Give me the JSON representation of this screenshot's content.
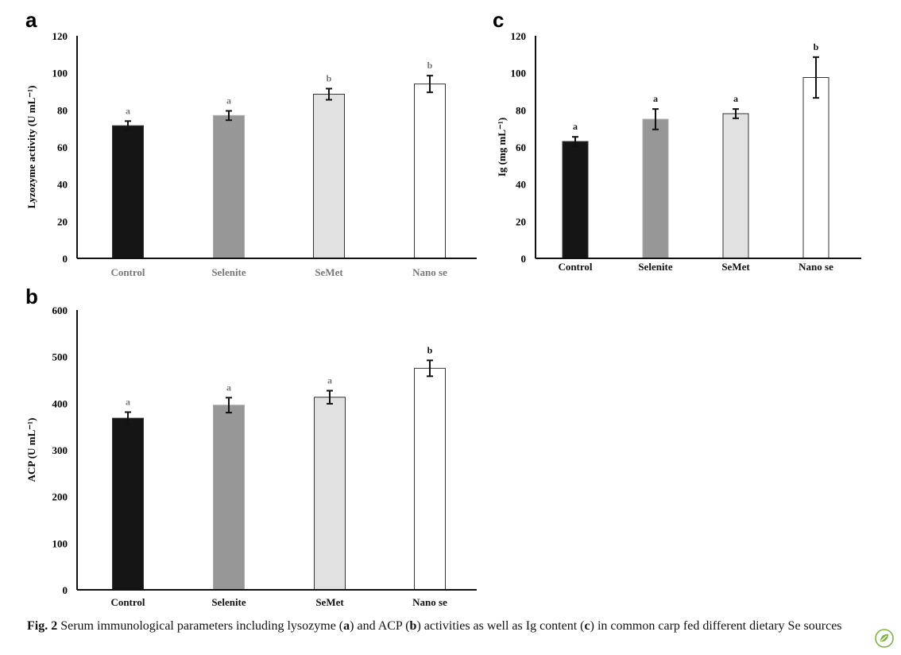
{
  "chart_data": [
    {
      "panel": "a",
      "type": "bar",
      "categories": [
        "Control",
        "Selenite",
        "SeMet",
        "Nano se"
      ],
      "values": [
        71.5,
        77,
        88.5,
        94
      ],
      "errors": [
        2.5,
        2.5,
        3,
        4.5
      ],
      "significance": [
        "a",
        "a",
        "b",
        "b"
      ],
      "ylabel": "Lyzozyme activity (U mL⁻¹)",
      "ylim": [
        0,
        120
      ],
      "yticks": [
        0,
        20,
        40,
        60,
        80,
        100,
        120
      ],
      "colors": [
        "#151515",
        "#979797",
        "#e1e1e1",
        "#ffffff"
      ],
      "label_color": "#777777"
    },
    {
      "panel": "b",
      "type": "bar",
      "categories": [
        "Control",
        "Selenite",
        "SeMet",
        "Nano se"
      ],
      "values": [
        368,
        396,
        413,
        475
      ],
      "errors": [
        13,
        16,
        14,
        17
      ],
      "significance": [
        "a",
        "a",
        "a",
        "b"
      ],
      "ylabel": "ACP (U mL⁻¹)",
      "ylim": [
        0,
        600
      ],
      "yticks": [
        0,
        100,
        200,
        300,
        400,
        500,
        600
      ],
      "colors": [
        "#151515",
        "#979797",
        "#e1e1e1",
        "#ffffff"
      ],
      "label_color": "#111111"
    },
    {
      "panel": "c",
      "type": "bar",
      "categories": [
        "Control",
        "Selenite",
        "SeMet",
        "Nano se"
      ],
      "values": [
        63,
        75,
        78,
        97.5
      ],
      "errors": [
        2.5,
        5.5,
        2.5,
        11
      ],
      "significance": [
        "a",
        "a",
        "a",
        "b"
      ],
      "ylabel": "Ig (mg mL⁻¹)",
      "ylim": [
        0,
        120
      ],
      "yticks": [
        0,
        20,
        40,
        60,
        80,
        100,
        120
      ],
      "colors": [
        "#151515",
        "#979797",
        "#e1e1e1",
        "#ffffff"
      ],
      "label_color": "#111111"
    }
  ],
  "caption": {
    "label": "Fig. 2",
    "text_1": "  Serum immunological parameters including lysozyme (",
    "a": "a",
    "text_2": ") and ACP (",
    "b": "b",
    "text_3": ") activities as well as Ig content (",
    "c": "c",
    "text_4": ") in common carp fed different dietary Se sources"
  },
  "logo": {
    "icon": "springer-leaf-icon",
    "color": "#7cb342"
  }
}
